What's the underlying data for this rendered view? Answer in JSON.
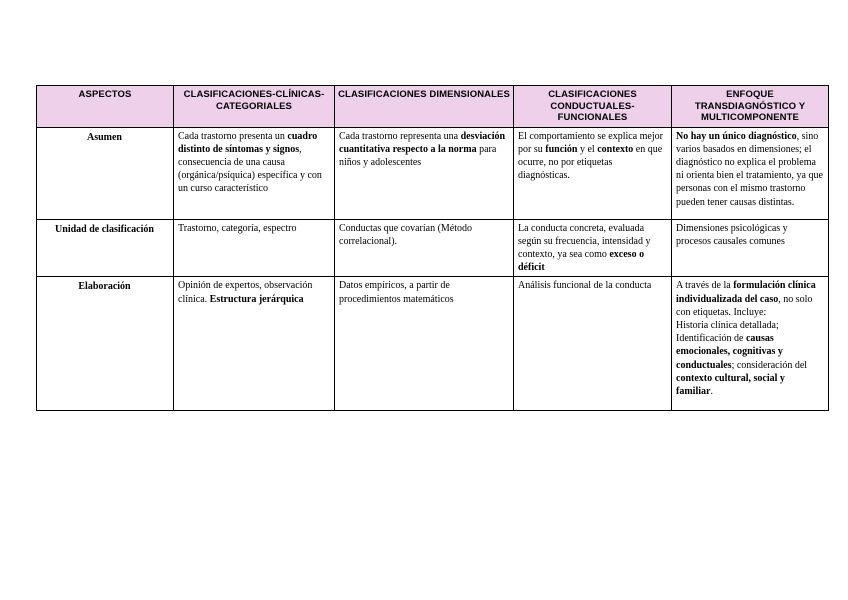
{
  "page": {
    "background": "#ffffff",
    "header_bg": "#eed0ea",
    "border_color": "#000000"
  },
  "table": {
    "columns": [
      {
        "label": "ASPECTOS"
      },
      {
        "label": "CLASIFICACIONES-CLÍNICAS-CATEGORIALES"
      },
      {
        "label": "CLASIFICACIONES DIMENSIONALES"
      },
      {
        "label": "CLASIFICACIONES CONDUCTUALES-FUNCIONALES"
      },
      {
        "label": "ENFOQUE TRANSDIAGNÓSTICO Y MULTICOMPONENTE"
      }
    ],
    "rows": [
      {
        "aspect": "Asumen",
        "cells": [
          [
            {
              "t": "Cada trastorno presenta un "
            },
            {
              "t": "cuadro distinto de síntomas y signos",
              "b": true
            },
            {
              "t": ", consecuencia de una causa (orgánica/psíquica) específica y con un curso característico"
            }
          ],
          [
            {
              "t": "Cada trastorno representa una "
            },
            {
              "t": "desviación cuantitativa respecto a la norma",
              "b": true
            },
            {
              "t": " para niños y adolescentes"
            }
          ],
          [
            {
              "t": "El comportamiento se explica mejor por su "
            },
            {
              "t": "función",
              "b": true
            },
            {
              "t": " y el "
            },
            {
              "t": "contexto",
              "b": true
            },
            {
              "t": " en que ocurre, no por etiquetas diagnósticas."
            }
          ],
          [
            {
              "t": "No hay un único diagnóstico",
              "b": true
            },
            {
              "t": ", sino varios basados en dimensiones; el diagnóstico no explica el problema ni orienta bien el tratamiento, ya que personas con el mismo trastorno pueden tener causas distintas."
            }
          ]
        ]
      },
      {
        "aspect": "Unidad de clasificación",
        "cells": [
          [
            {
              "t": "Trastorno, categoría, espectro"
            }
          ],
          [
            {
              "t": "Conductas que covarían (Método correlacional)."
            }
          ],
          [
            {
              "t": "La conducta concreta, evaluada según su frecuencia, intensidad y contexto, ya sea como "
            },
            {
              "t": "exceso o déficit",
              "b": true
            }
          ],
          [
            {
              "t": "Dimensiones psicológicas y procesos causales comunes"
            }
          ]
        ]
      },
      {
        "aspect": "Elaboración",
        "cells": [
          [
            {
              "t": "Opinión de expertos, observación clínica. "
            },
            {
              "t": "Estructura jerárquica",
              "b": true
            }
          ],
          [
            {
              "t": "Datos empíricos, a partir de procedimientos matemáticos"
            }
          ],
          [
            {
              "t": "Análisis funcional de la conducta"
            }
          ],
          [
            {
              "t": "A través de la "
            },
            {
              "t": "formulación clínica individualizada del caso",
              "b": true
            },
            {
              "t": ", no solo con etiquetas. Incluye:\nHistoria clínica detallada;\nIdentificación de "
            },
            {
              "t": "causas emocionales, cognitivas y conductuales",
              "b": true
            },
            {
              "t": "; consideración del "
            },
            {
              "t": "contexto cultural, social y familiar",
              "b": true
            },
            {
              "t": "."
            }
          ]
        ]
      }
    ]
  }
}
